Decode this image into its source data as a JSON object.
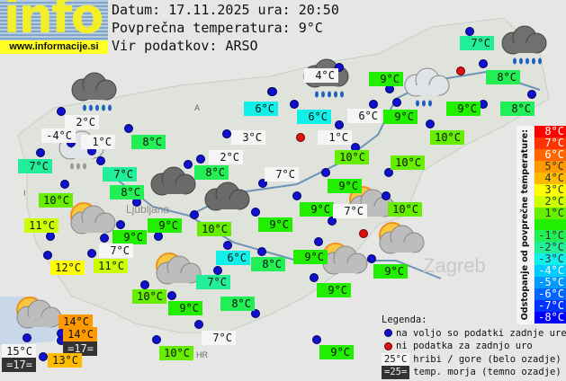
{
  "logo": {
    "word": "info",
    "url": "www.informacije.si"
  },
  "header": {
    "date_line": "Datum: 17.11.2025 ura: 20:50",
    "avg_line": "Povprečna temperatura: 9°C",
    "source_line": "Vir podatkov: ARSO"
  },
  "average_temperature_c": 9,
  "map_labels": [
    "A",
    "I",
    "HR",
    "Ljubljana",
    "Zagreb"
  ],
  "stations": [
    {
      "text": "7°C",
      "kind": "valley",
      "value": 7
    },
    {
      "text": "4°C",
      "kind": "mountain",
      "value": 4
    },
    {
      "text": "9°C",
      "kind": "valley",
      "value": 9
    },
    {
      "text": "8°C",
      "kind": "valley",
      "value": 8
    },
    {
      "text": "6°C",
      "kind": "valley",
      "value": 6
    },
    {
      "text": "6°C",
      "kind": "valley",
      "value": 6
    },
    {
      "text": "6°C",
      "kind": "mountain",
      "value": 6
    },
    {
      "text": "9°C",
      "kind": "valley",
      "value": 9
    },
    {
      "text": "9°C",
      "kind": "valley",
      "value": 9
    },
    {
      "text": "8°C",
      "kind": "valley",
      "value": 8
    },
    {
      "text": "2°C",
      "kind": "mountain",
      "value": 2
    },
    {
      "text": "-4°C",
      "kind": "mountain",
      "value": -4
    },
    {
      "text": "1°C",
      "kind": "mountain",
      "value": 1
    },
    {
      "text": "8°C",
      "kind": "valley",
      "value": 8
    },
    {
      "text": "3°C",
      "kind": "mountain",
      "value": 3
    },
    {
      "text": "1°C",
      "kind": "mountain",
      "value": 1
    },
    {
      "text": "10°C",
      "kind": "valley",
      "value": 10
    },
    {
      "text": "7°C",
      "kind": "valley",
      "value": 7
    },
    {
      "text": "2°C",
      "kind": "mountain",
      "value": 2
    },
    {
      "text": "10°C",
      "kind": "valley",
      "value": 10
    },
    {
      "text": "10°C",
      "kind": "valley",
      "value": 10
    },
    {
      "text": "7°C",
      "kind": "valley",
      "value": 7
    },
    {
      "text": "8°C",
      "kind": "valley",
      "value": 8
    },
    {
      "text": "7°C",
      "kind": "mountain",
      "value": 7
    },
    {
      "text": "9°C",
      "kind": "valley",
      "value": 9
    },
    {
      "text": "8°C",
      "kind": "valley",
      "value": 8
    },
    {
      "text": "10°C",
      "kind": "valley",
      "value": 10
    },
    {
      "text": "9°C",
      "kind": "valley",
      "value": 9
    },
    {
      "text": "7°C",
      "kind": "mountain",
      "value": 7
    },
    {
      "text": "10°C",
      "kind": "valley",
      "value": 10
    },
    {
      "text": "11°C",
      "kind": "valley",
      "value": 11
    },
    {
      "text": "9°C",
      "kind": "valley",
      "value": 9
    },
    {
      "text": "10°C",
      "kind": "valley",
      "value": 10
    },
    {
      "text": "9°C",
      "kind": "valley",
      "value": 9
    },
    {
      "text": "9°C",
      "kind": "valley",
      "value": 9
    },
    {
      "text": "7°C",
      "kind": "mountain",
      "value": 7
    },
    {
      "text": "12°C",
      "kind": "valley",
      "value": 12
    },
    {
      "text": "11°C",
      "kind": "valley",
      "value": 11
    },
    {
      "text": "6°C",
      "kind": "valley",
      "value": 6
    },
    {
      "text": "8°C",
      "kind": "valley",
      "value": 8
    },
    {
      "text": "9°C",
      "kind": "valley",
      "value": 9
    },
    {
      "text": "7°C",
      "kind": "valley",
      "value": 7
    },
    {
      "text": "10°C",
      "kind": "valley",
      "value": 10
    },
    {
      "text": "9°C",
      "kind": "valley",
      "value": 9
    },
    {
      "text": "8°C",
      "kind": "valley",
      "value": 8
    },
    {
      "text": "9°C",
      "kind": "valley",
      "value": 9
    },
    {
      "text": "9°C",
      "kind": "valley",
      "value": 9
    },
    {
      "text": "14°C",
      "kind": "valley",
      "value": 14
    },
    {
      "text": "14°C",
      "kind": "valley",
      "value": 14
    },
    {
      "text": "=17=",
      "kind": "sea",
      "value": 17
    },
    {
      "text": "15°C",
      "kind": "mountain",
      "value": 15
    },
    {
      "text": "=17=",
      "kind": "sea",
      "value": 17
    },
    {
      "text": "13°C",
      "kind": "valley",
      "value": 13
    },
    {
      "text": "7°C",
      "kind": "mountain",
      "value": 7
    },
    {
      "text": "10°C",
      "kind": "valley",
      "value": 10
    },
    {
      "text": "9°C",
      "kind": "valley",
      "value": 9
    }
  ],
  "scale": {
    "title": "Odstopanje od povprečne temperature:",
    "rows": [
      {
        "label": "8°C",
        "color": "#ff0000"
      },
      {
        "label": "7°C",
        "color": "#ff3300"
      },
      {
        "label": "6°C",
        "color": "#ff6600"
      },
      {
        "label": "5°C",
        "color": "#ff9900"
      },
      {
        "label": "4°C",
        "color": "#ffbb00"
      },
      {
        "label": "3°C",
        "color": "#ffff00"
      },
      {
        "label": "2°C",
        "color": "#ccff00"
      },
      {
        "label": "1°C",
        "color": "#66ee00"
      },
      {
        "label": "",
        "color": "#22ee00"
      },
      {
        "label": "-1°C",
        "color": "#22ee55"
      },
      {
        "label": "-2°C",
        "color": "#22ee99"
      },
      {
        "label": "-3°C",
        "color": "#11f0e8"
      },
      {
        "label": "-4°C",
        "color": "#00ccff"
      },
      {
        "label": "-5°C",
        "color": "#0099ff"
      },
      {
        "label": "-6°C",
        "color": "#0066ff"
      },
      {
        "label": "-7°C",
        "color": "#0033ff"
      },
      {
        "label": "-8°C",
        "color": "#0000ff"
      }
    ]
  },
  "legend": {
    "title": "Legenda:",
    "available": "na voljo so podatki zadnje ure",
    "missing": "ni podatka za zadnjo uro",
    "mountain_sample": "25°C",
    "mountain_text": "hribi / gore (belo ozadje)",
    "sea_sample": "=25=",
    "sea_text": "temp. morja (temno ozadje)"
  },
  "colors": {
    "station_ok": "#1010d0",
    "station_missing": "#e01010",
    "mountain_bg": "#f6f6f6",
    "sea_bg": "#333333"
  },
  "weather_icons": [
    "rain",
    "rain",
    "rain",
    "light-rain",
    "overcast-snow",
    "cloudy",
    "cloudy",
    "partly-cloudy",
    "partly-cloudy",
    "partly-cloudy",
    "partly-cloudy",
    "partly-cloudy",
    "partly-cloudy"
  ]
}
